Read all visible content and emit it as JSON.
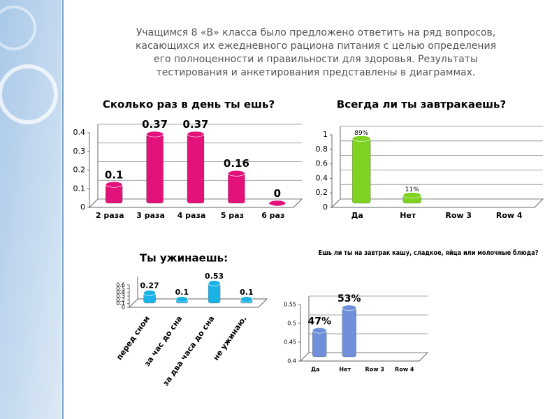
{
  "intro": [
    "Учащимся 8 «В» класса было предложено ответить на ряд вопросов,",
    "касающихся их ежедневного  рациона питания с целью определения",
    "его полноценности и правильности для здоровья.  Результаты",
    "тестирования и анкетирования представлены в диаграммах."
  ],
  "chart_data": [
    {
      "type": "bar",
      "title": "Сколько раз в день ты ешь?",
      "categories": [
        "2 раза",
        "3 раза",
        "4 раза",
        "5 раз",
        "6 раз"
      ],
      "values": [
        0.1,
        0.37,
        0.37,
        0.16,
        0
      ],
      "color": "#e2127a",
      "ylim": [
        0,
        0.4
      ],
      "yticks": [
        0,
        0.1,
        0.2,
        0.3,
        0.4
      ],
      "grid": true
    },
    {
      "type": "bar",
      "title": "Всегда ли ты завтракаешь?",
      "categories": [
        "Да",
        "Нет",
        "Row 3",
        "Row 4"
      ],
      "values": [
        0.89,
        0.11,
        null,
        null
      ],
      "value_labels": [
        "89%",
        "11%",
        null,
        null
      ],
      "color": "#7ed321",
      "ylim": [
        0,
        1
      ],
      "yticks": [
        0,
        0.2,
        0.4,
        0.6,
        0.8,
        1
      ],
      "grid": true
    },
    {
      "type": "bar",
      "title": "Ты  ужинаешь:",
      "categories": [
        "перед сном",
        "за час до сна",
        "за два часа до сна",
        "не ужинаю."
      ],
      "values": [
        0.27,
        0.1,
        0.53,
        0.1
      ],
      "color": "#1bb3e6",
      "ylim": [
        0,
        0.6
      ],
      "yticks": [
        0,
        0.1,
        0.2,
        0.3,
        0.4,
        0.5,
        0.6
      ],
      "grid": false
    },
    {
      "type": "bar",
      "title": "Ешь ли ты на завтрак кашу, сладкое, яйца или молочные блюда?",
      "categories": [
        "Да",
        "Нет",
        "Row 3",
        "Row 4"
      ],
      "values": [
        0.47,
        0.53,
        null,
        null
      ],
      "value_labels": [
        "47%",
        "53%",
        null,
        null
      ],
      "color": "#6f8fd8",
      "ylim": [
        0.4,
        0.55
      ],
      "yticks": [
        0.4,
        0.45,
        0.5,
        0.55
      ],
      "grid": true
    }
  ]
}
